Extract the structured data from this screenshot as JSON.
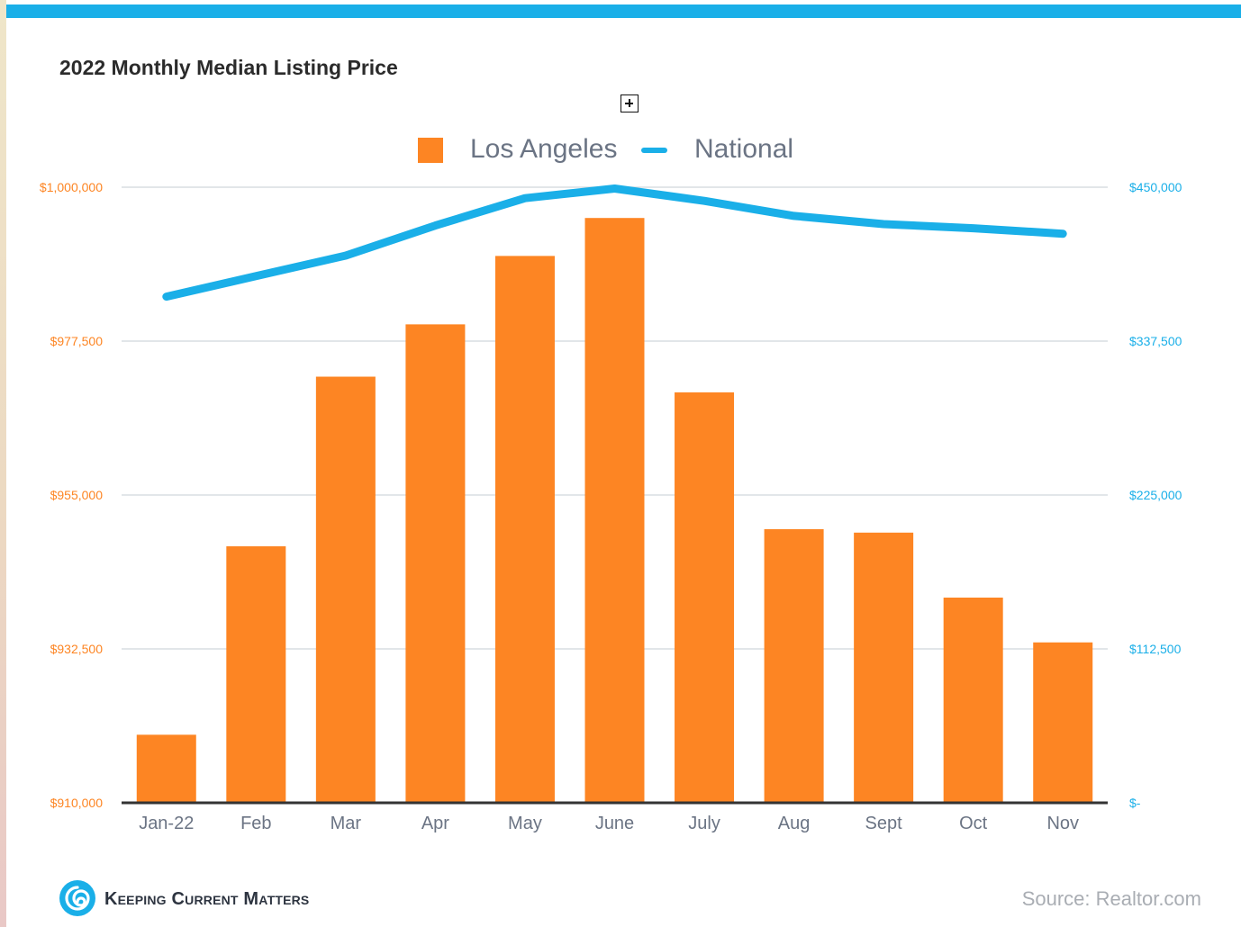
{
  "page": {
    "title": "2022 Monthly Median Listing Price",
    "source": "Source: Realtor.com",
    "logo_text": "Keeping Current Matters"
  },
  "legend": {
    "los_angeles": "Los Angeles",
    "national": "National"
  },
  "colors": {
    "los_angeles": "#fd8523",
    "national": "#1aafe8",
    "grid": "#d9dde2",
    "axis": "#333333",
    "top_bar": "#1aafe8"
  },
  "chart_data": {
    "type": "bar",
    "title": "2022 Monthly Median Listing Price",
    "categories": [
      "Jan-22",
      "Feb",
      "Mar",
      "Apr",
      "May",
      "June",
      "July",
      "Aug",
      "Sept",
      "Oct",
      "Nov"
    ],
    "series": [
      {
        "name": "Los Angeles",
        "type": "bar",
        "axis": "left",
        "values": [
          919950,
          947500,
          972300,
          979950,
          989950,
          995500,
          970000,
          950000,
          949500,
          940000,
          933450
        ]
      },
      {
        "name": "National",
        "type": "line",
        "axis": "right",
        "values": [
          370000,
          385000,
          400000,
          422000,
          442000,
          449000,
          440000,
          429000,
          423000,
          420000,
          416000
        ]
      }
    ],
    "ylim_left": [
      910000,
      1000000
    ],
    "ylim_right": [
      0,
      450000
    ],
    "yticks_left": [
      "$910,000",
      "$932,500",
      "$955,000",
      "$977,500",
      "$1,000,000"
    ],
    "yticks_right": [
      "$-",
      "$112,500",
      "$225,000",
      "$337,500",
      "$450,000"
    ],
    "grid": true,
    "legend_position": "top-center"
  }
}
